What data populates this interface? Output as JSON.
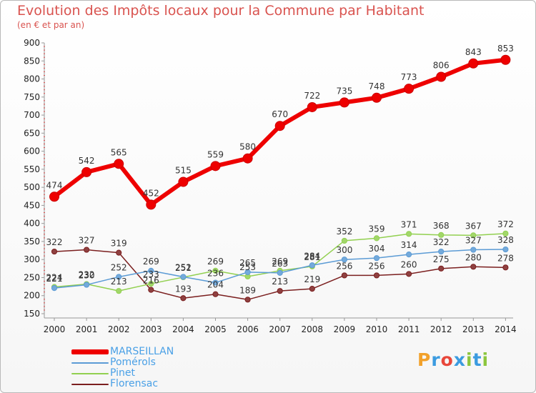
{
  "header": {
    "title": "Evolution des Impôts locaux pour la Commune par Habitant",
    "subtitle": "(en € et par an)"
  },
  "logo": {
    "text": "Proxiti",
    "colors": [
      "#f2a12b",
      "#3b9be0",
      "#e8473b",
      "#3b9be0",
      "#8cc63e",
      "#3b9be0",
      "#8cc63e"
    ]
  },
  "chart_data": {
    "type": "line",
    "x": [
      "2000",
      "2001",
      "2002",
      "2003",
      "2004",
      "2005",
      "2006",
      "2007",
      "2008",
      "2009",
      "2010",
      "2011",
      "2012",
      "2013",
      "2014"
    ],
    "ylim": [
      150,
      900
    ],
    "yticks": [
      150,
      200,
      250,
      300,
      350,
      400,
      450,
      500,
      550,
      600,
      650,
      700,
      750,
      800,
      850,
      900
    ],
    "grid": false,
    "legend_position": "bottom-left",
    "series": [
      {
        "name": "MARSEILLAN",
        "color": "#ee0000",
        "values": [
          474,
          542,
          565,
          452,
          515,
          559,
          580,
          670,
          722,
          735,
          748,
          773,
          806,
          843,
          853
        ],
        "labels": [
          "474",
          "542",
          "565",
          "452",
          "515",
          "559",
          "580",
          "670",
          "722",
          "735",
          "748",
          "773",
          "806",
          "843",
          "853"
        ]
      },
      {
        "name": "Pomérols",
        "color": "#5b9bd5",
        "values": [
          221,
          230,
          252,
          269,
          252,
          236,
          265,
          263,
          284,
          300,
          304,
          314,
          322,
          327,
          328
        ],
        "labels": [
          "221",
          "230",
          "252",
          "269",
          "252",
          "236",
          "265",
          "263",
          "284",
          "300",
          "304",
          "314",
          "322",
          "327",
          "328"
        ]
      },
      {
        "name": "Pinet",
        "color": "#92d050",
        "values": [
          224,
          232,
          213,
          233,
          251,
          269,
          253,
          269,
          281,
          352,
          359,
          371,
          368,
          367,
          372
        ],
        "labels": [
          "224",
          "232",
          "213",
          "233",
          "251",
          "269",
          "253",
          "269",
          "281",
          "352",
          "359",
          "371",
          "368",
          "367",
          "372"
        ]
      },
      {
        "name": "Florensac",
        "color": "#7b1f1f",
        "values": [
          322,
          327,
          319,
          216,
          193,
          204,
          189,
          213,
          219,
          256,
          256,
          260,
          275,
          280,
          278
        ],
        "labels": [
          "322",
          "327",
          "319",
          "216",
          "193",
          "204",
          "189",
          "213",
          "219",
          "256",
          "256",
          "260",
          "275",
          "280",
          "278"
        ]
      }
    ]
  }
}
